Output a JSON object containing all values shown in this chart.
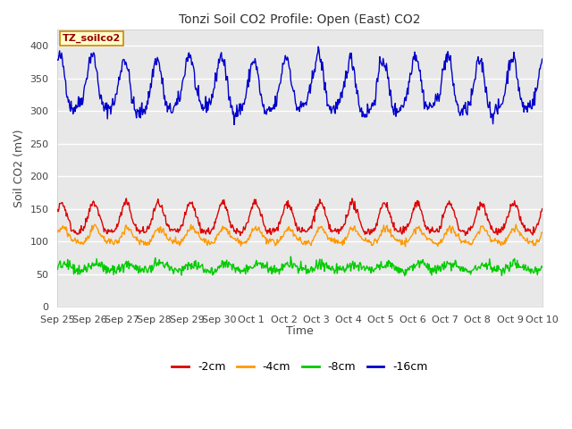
{
  "title": "Tonzi Soil CO2 Profile: Open (East) CO2",
  "ylabel": "Soil CO2 (mV)",
  "xlabel": "Time",
  "annotation": "TZ_soilco2",
  "annotation_color": "#990000",
  "annotation_bg": "#ffffcc",
  "annotation_border": "#cc8800",
  "ylim": [
    0,
    425
  ],
  "yticks": [
    0,
    50,
    100,
    150,
    200,
    250,
    300,
    350,
    400
  ],
  "fig_bg": "#ffffff",
  "plot_bg": "#e8e8e8",
  "grid_color": "#ffffff",
  "colors": {
    "-2cm": "#dd0000",
    "-4cm": "#ff9900",
    "-8cm": "#00cc00",
    "-16cm": "#0000cc"
  },
  "legend_labels": [
    "-2cm",
    "-4cm",
    "-8cm",
    "-16cm"
  ],
  "x_tick_labels": [
    "Sep 25",
    "Sep 26",
    "Sep 27",
    "Sep 28",
    "Sep 29",
    "Sep 30",
    "Oct 1",
    "Oct 2",
    "Oct 3",
    "Oct 4",
    "Oct 5",
    "Oct 6",
    "Oct 7",
    "Oct 8",
    "Oct 9",
    "Oct 10"
  ],
  "n_days": 15,
  "seed": 42
}
